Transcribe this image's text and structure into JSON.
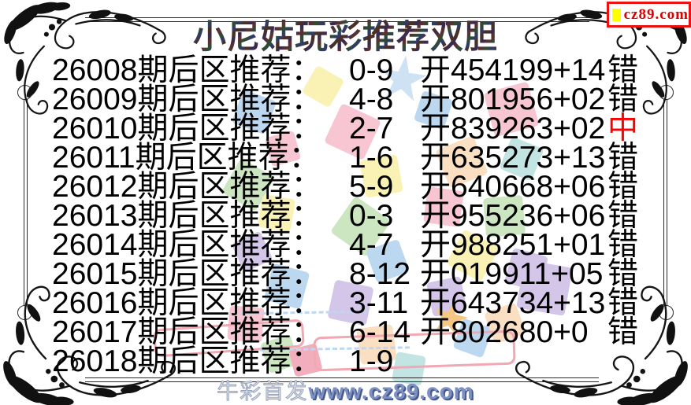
{
  "badge": {
    "site": "cz89.com"
  },
  "title": "小尼姑玩彩推荐双胆",
  "table": {
    "rows": [
      {
        "period": "26008",
        "label": "期后区推荐：",
        "rec": "0-9",
        "open": "开454199+14",
        "result": "错",
        "hit": false
      },
      {
        "period": "26009",
        "label": "期后区推荐：",
        "rec": "4-8",
        "open": "开801956+02",
        "result": "错",
        "hit": false
      },
      {
        "period": "26010",
        "label": "期后区推荐：",
        "rec": "2-7",
        "open": "开839263+02",
        "result": "中",
        "hit": true
      },
      {
        "period": "26011",
        "label": "期后区推荐：",
        "rec": "1-6",
        "open": "开635273+13",
        "result": "错",
        "hit": false
      },
      {
        "period": "26012",
        "label": "期后区推荐：",
        "rec": "5-9",
        "open": "开640668+06",
        "result": "错",
        "hit": false
      },
      {
        "period": "26013",
        "label": "期后区推荐：",
        "rec": "0-3",
        "open": "开955236+06",
        "result": "错",
        "hit": false
      },
      {
        "period": "26014",
        "label": "期后区推荐：",
        "rec": "4-7",
        "open": "开988251+01",
        "result": "错",
        "hit": false
      },
      {
        "period": "26015",
        "label": "期后区推荐：",
        "rec": "8-12",
        "open": "开019911+05",
        "result": "错",
        "hit": false
      },
      {
        "period": "26016",
        "label": "期后区推荐：",
        "rec": "3-11",
        "open": "开643734+13",
        "result": "错",
        "hit": false
      },
      {
        "period": "26017",
        "label": "期后区推荐：",
        "rec": "6-14",
        "open": "开802680+0",
        "result": "错",
        "hit": false
      },
      {
        "period": "26018",
        "label": "期后区推荐：",
        "rec": "1-9",
        "open": "",
        "result": "",
        "hit": false
      }
    ]
  },
  "footer": {
    "prefix": "牛彩首发",
    "site": "www.cz89.com"
  },
  "colors": {
    "hit_red": "#ff0000",
    "body_text": "#000000",
    "badge_red": "#ee1111",
    "badge_yellow": "#ffff00",
    "watermark_blue": "#7d90c2"
  }
}
